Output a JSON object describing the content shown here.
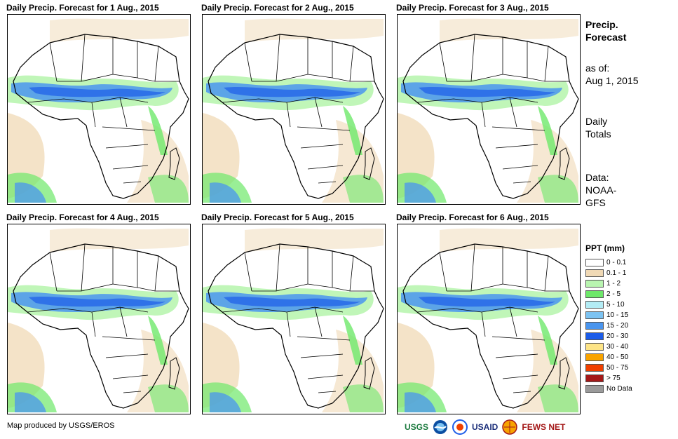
{
  "panels": [
    {
      "title": "Daily Precip. Forecast for 1 Aug., 2015"
    },
    {
      "title": "Daily Precip. Forecast for 2 Aug., 2015"
    },
    {
      "title": "Daily Precip. Forecast for 3 Aug., 2015"
    },
    {
      "title": "Daily Precip. Forecast for 4 Aug., 2015"
    },
    {
      "title": "Daily Precip. Forecast for 5 Aug., 2015"
    },
    {
      "title": "Daily Precip. Forecast for 6 Aug., 2015"
    }
  ],
  "side": {
    "title_line1": "Precip.",
    "title_line2": "Forecast",
    "asof_line1": "as of:",
    "asof_line2": "Aug 1, 2015",
    "totals_line1": "Daily",
    "totals_line2": "Totals",
    "data_line1": "Data:",
    "data_line2": "NOAA-",
    "data_line3": "GFS"
  },
  "legend": {
    "title": "PPT (mm)",
    "items": [
      {
        "label": "0 - 0.1",
        "color": "#ffffff"
      },
      {
        "label": "0.1 - 1",
        "color": "#f0d9b5"
      },
      {
        "label": "1 - 2",
        "color": "#b9f5b0"
      },
      {
        "label": "2 - 5",
        "color": "#6ee86a"
      },
      {
        "label": "5 - 10",
        "color": "#b3ecf5"
      },
      {
        "label": "10 - 15",
        "color": "#7cc3f2"
      },
      {
        "label": "15 - 20",
        "color": "#4a95ee"
      },
      {
        "label": "20 - 30",
        "color": "#1c5ce8"
      },
      {
        "label": "30 - 40",
        "color": "#fde486"
      },
      {
        "label": "40 - 50",
        "color": "#f8a300"
      },
      {
        "label": "50 - 75",
        "color": "#f04000"
      },
      {
        "label": "> 75",
        "color": "#a41818"
      },
      {
        "label": "No Data",
        "color": "#9a9a9a"
      }
    ]
  },
  "credit": "Map produced by USGS/EROS",
  "logos": {
    "usgs": "USGS",
    "noaa": "NOAA",
    "usaid": "USAID",
    "fewsnet": "FEWS NET"
  },
  "colors": {
    "rain_band": "#4a95ee",
    "rain_core": "#1c5ce8",
    "light": "#b9f5b0",
    "moderate": "#6ee86a",
    "dry": "#f0d9b5",
    "heavy": "#f04000"
  }
}
